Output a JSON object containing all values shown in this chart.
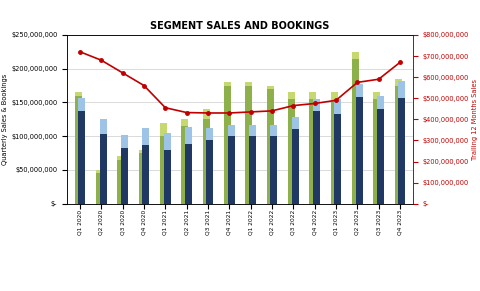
{
  "categories": [
    "Q1 2020",
    "Q2 2020",
    "Q3 2020",
    "Q4 2020",
    "Q1 2021",
    "Q2 2021",
    "Q3 2021",
    "Q4 2021",
    "Q1 2022",
    "Q2 2022",
    "Q3 2022",
    "Q4 2022",
    "Q1 2023",
    "Q2 2023",
    "Q3 2023",
    "Q4 2023"
  ],
  "aerospace_bookings": [
    160000000,
    45000000,
    65000000,
    75000000,
    100000000,
    115000000,
    125000000,
    175000000,
    175000000,
    170000000,
    155000000,
    155000000,
    150000000,
    215000000,
    155000000,
    175000000
  ],
  "test_bookings": [
    5000000,
    5000000,
    5000000,
    5000000,
    20000000,
    10000000,
    15000000,
    5000000,
    5000000,
    5000000,
    10000000,
    10000000,
    15000000,
    10000000,
    10000000,
    10000000
  ],
  "aerospace_sales": [
    138000000,
    103000000,
    82000000,
    87000000,
    80000000,
    88000000,
    95000000,
    100000000,
    100000000,
    100000000,
    110000000,
    137000000,
    133000000,
    158000000,
    140000000,
    157000000
  ],
  "test_sales": [
    18000000,
    22000000,
    20000000,
    25000000,
    25000000,
    25000000,
    17000000,
    17000000,
    17000000,
    16000000,
    18000000,
    18000000,
    22000000,
    20000000,
    20000000,
    25000000
  ],
  "trailing_12m": [
    720000000,
    680000000,
    620000000,
    560000000,
    455000000,
    432000000,
    430000000,
    430000000,
    435000000,
    440000000,
    465000000,
    475000000,
    490000000,
    575000000,
    590000000,
    670000000
  ],
  "title": "SEGMENT SALES AND BOOKINGS",
  "ylabel_left": "Quarterly Sales & Bookings",
  "ylabel_right": "Trailing 12 Months Sales",
  "ylim_left": [
    0,
    250000000
  ],
  "ylim_right": [
    0,
    800000000
  ],
  "color_aero_bookings": "#8db04a",
  "color_test_bookings": "#c6d870",
  "color_aero_sales": "#1f3864",
  "color_test_sales": "#9dc3e6",
  "color_line": "#c00000"
}
